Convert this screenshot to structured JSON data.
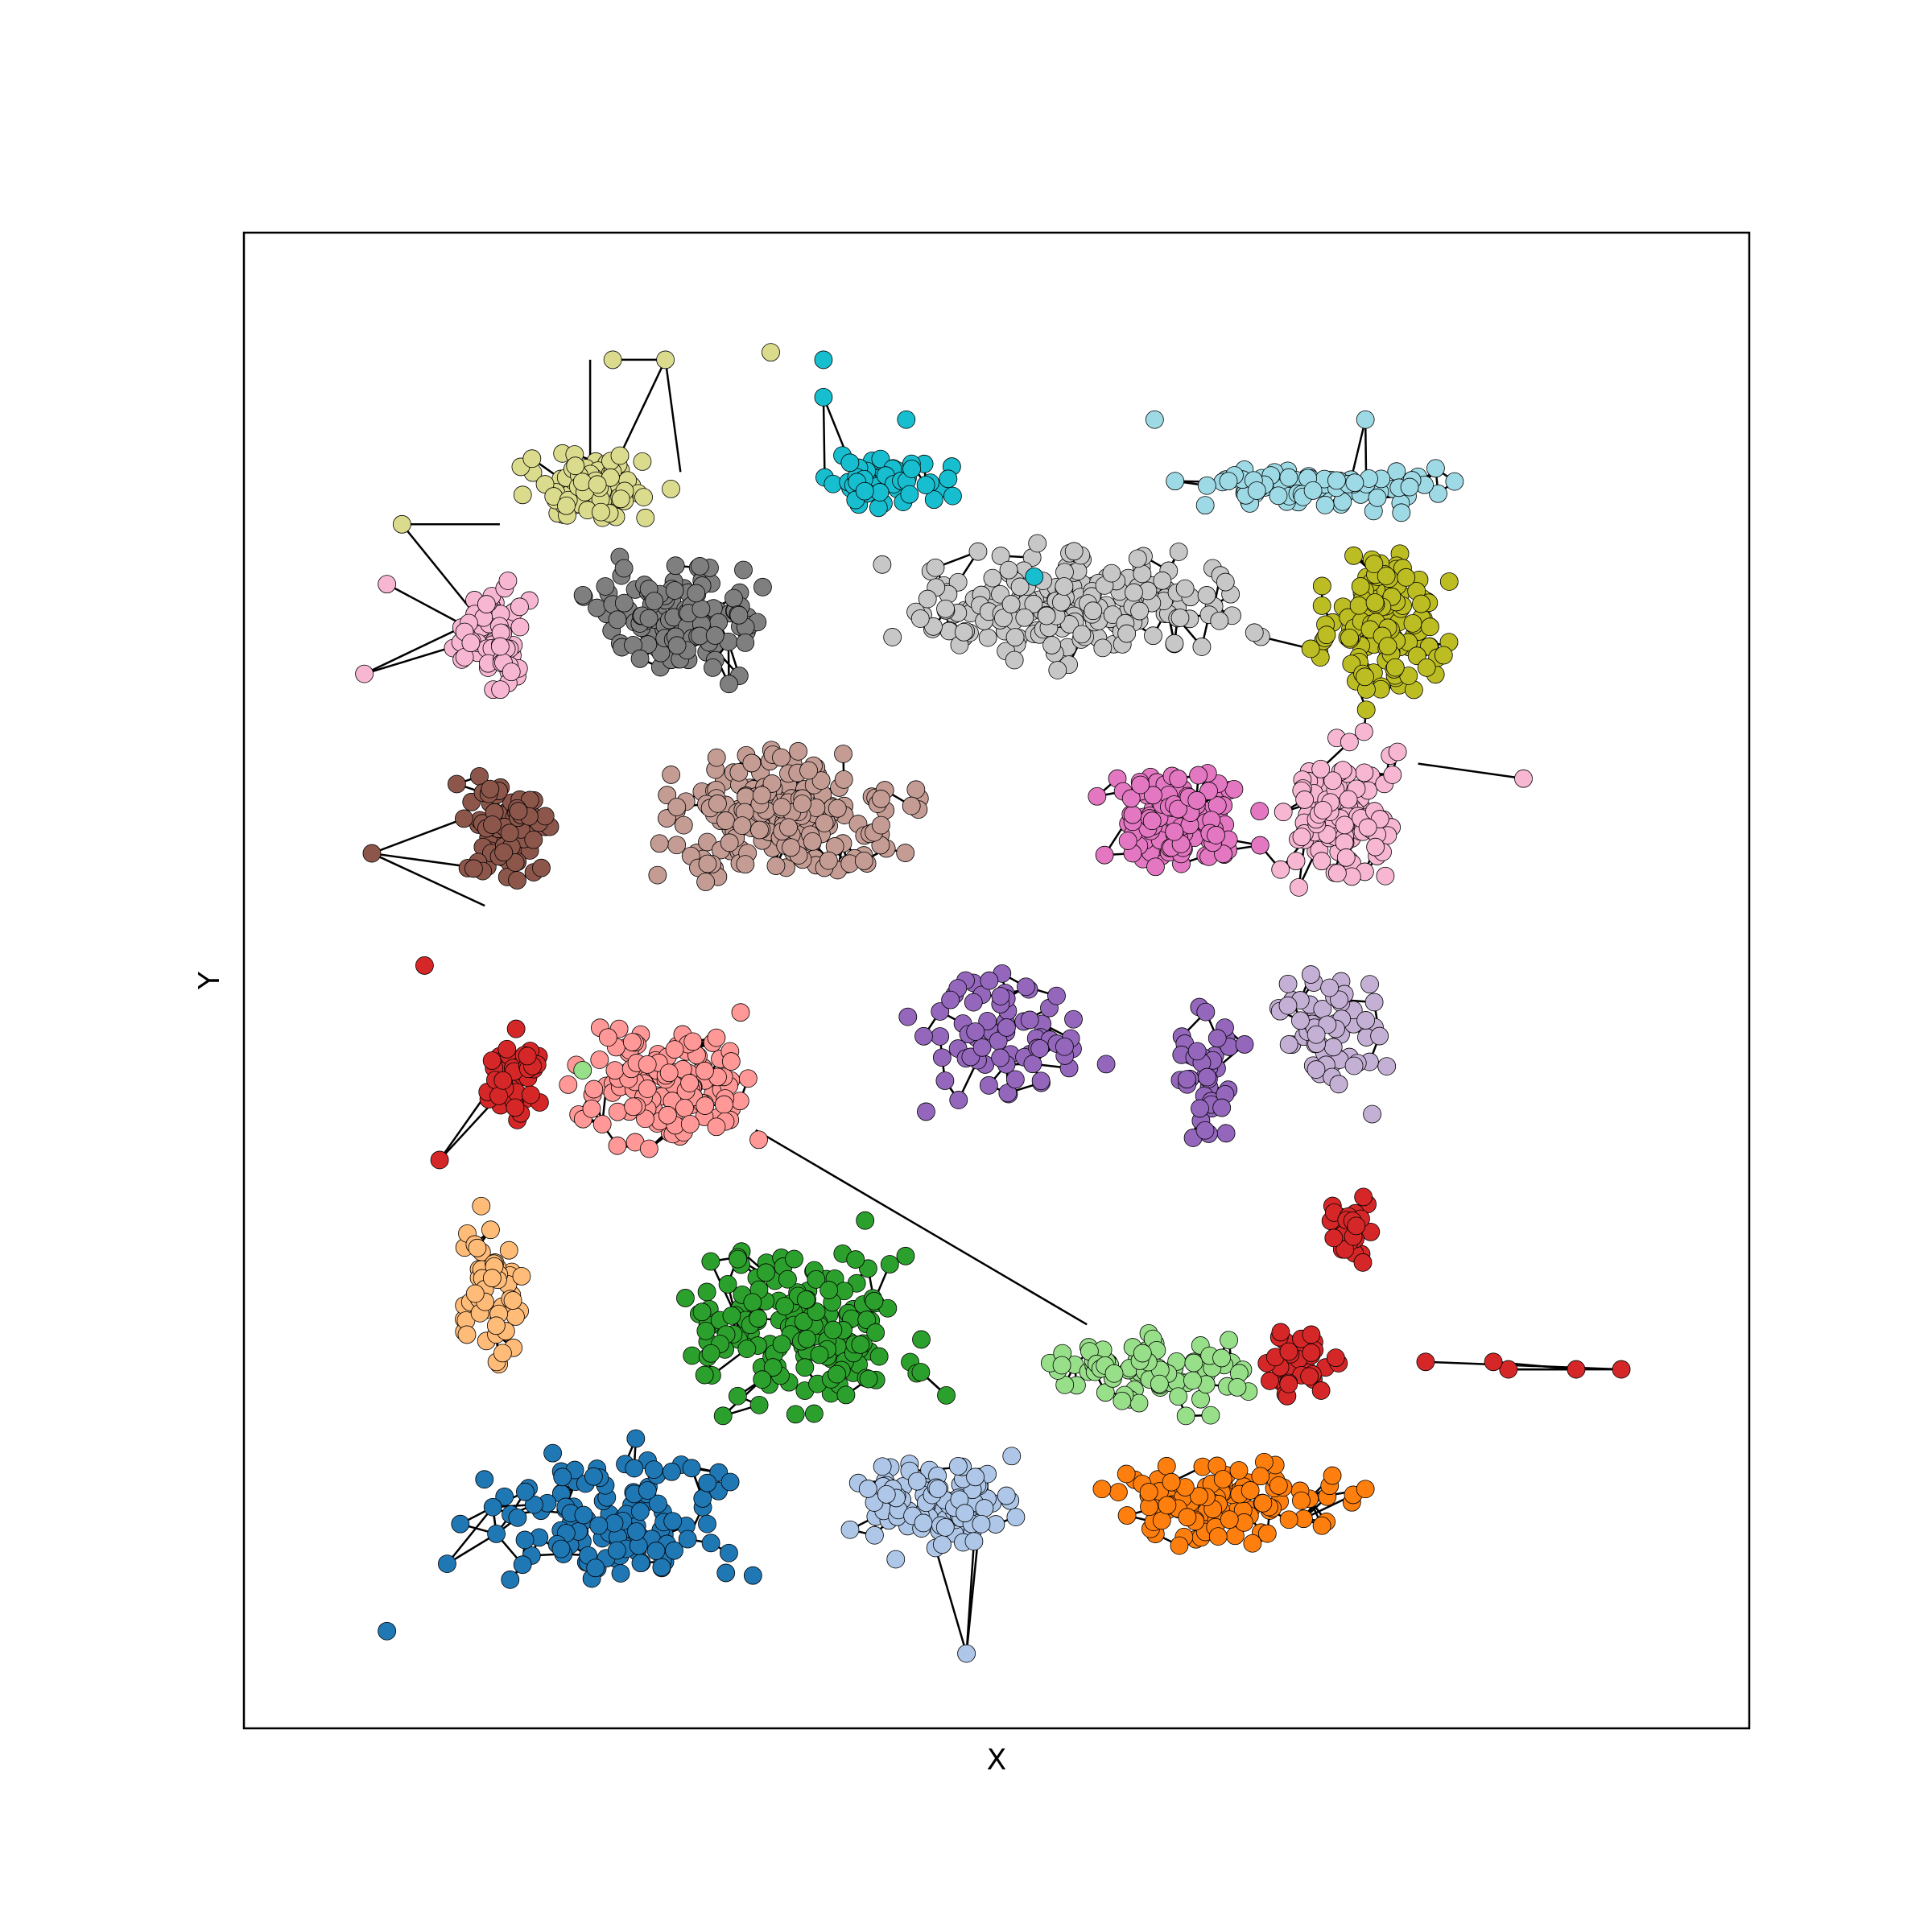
{
  "chart_data": {
    "type": "scatter",
    "subtype": "network-graph",
    "title": "",
    "xlabel": "X",
    "ylabel": "Y",
    "xlim": [
      0,
      100
    ],
    "ylim": [
      0,
      100
    ],
    "ticks": "none",
    "grid": false,
    "legend": "none",
    "edge_color": "#000000",
    "node_outline": "#000000",
    "clusters": [
      {
        "color": "#dbdb8d",
        "center": [
          23,
          83
        ],
        "spread": [
          6,
          3
        ],
        "n": 90
      },
      {
        "color": "#17becf",
        "center": [
          42.5,
          83.5
        ],
        "spread": [
          6,
          2
        ],
        "n": 60
      },
      {
        "color": "#9edae5",
        "center": [
          71,
          83
        ],
        "spread": [
          12,
          2
        ],
        "n": 90
      },
      {
        "color": "#f7b6d2",
        "center": [
          16.5,
          73
        ],
        "spread": [
          3,
          5
        ],
        "n": 70
      },
      {
        "color": "#7f7f7f",
        "center": [
          29,
          74
        ],
        "spread": [
          8,
          5
        ],
        "n": 130
      },
      {
        "color": "#c7c7c7",
        "center": [
          55,
          75
        ],
        "spread": [
          15,
          5
        ],
        "n": 220
      },
      {
        "color": "#bcbd22",
        "center": [
          75.5,
          74
        ],
        "spread": [
          5.5,
          7
        ],
        "n": 140
      },
      {
        "color": "#8c564b",
        "center": [
          17.5,
          60
        ],
        "spread": [
          4,
          5
        ],
        "n": 90
      },
      {
        "color": "#c49c94",
        "center": [
          36,
          61
        ],
        "spread": [
          11,
          5.5
        ],
        "n": 220
      },
      {
        "color": "#e377c2",
        "center": [
          62,
          61
        ],
        "spread": [
          6.5,
          5
        ],
        "n": 120
      },
      {
        "color": "#f7b6d2",
        "center": [
          72.5,
          61
        ],
        "spread": [
          5,
          6.5
        ],
        "n": 110
      },
      {
        "color": "#9467bd",
        "center": [
          51,
          46
        ],
        "spread": [
          9,
          6
        ],
        "n": 70
      },
      {
        "color": "#9467bd",
        "center": [
          64,
          44
        ],
        "spread": [
          3,
          6
        ],
        "n": 40
      },
      {
        "color": "#c5b0d5",
        "center": [
          72.5,
          46
        ],
        "spread": [
          5,
          7
        ],
        "n": 60
      },
      {
        "color": "#ff9896",
        "center": [
          28,
          43
        ],
        "spread": [
          8,
          6
        ],
        "n": 140
      },
      {
        "color": "#d62728",
        "center": [
          18,
          44
        ],
        "spread": [
          3,
          5
        ],
        "n": 45
      },
      {
        "color": "#ffbb78",
        "center": [
          16.5,
          29
        ],
        "spread": [
          3,
          7
        ],
        "n": 55
      },
      {
        "color": "#2ca02c",
        "center": [
          37,
          27
        ],
        "spread": [
          11,
          8
        ],
        "n": 170
      },
      {
        "color": "#98df8a",
        "center": [
          60,
          24
        ],
        "spread": [
          10,
          4
        ],
        "n": 80
      },
      {
        "color": "#1f77b4",
        "center": [
          24,
          14
        ],
        "spread": [
          11,
          6
        ],
        "n": 130
      },
      {
        "color": "#aec7e8",
        "center": [
          46,
          15
        ],
        "spread": [
          7,
          4
        ],
        "n": 110
      },
      {
        "color": "#ff7f0e",
        "center": [
          65,
          15
        ],
        "spread": [
          10,
          4
        ],
        "n": 110
      },
      {
        "color": "#d62728",
        "center": [
          70.5,
          24.5
        ],
        "spread": [
          3,
          4
        ],
        "n": 40
      },
      {
        "color": "#d62728",
        "center": [
          73.5,
          33
        ],
        "spread": [
          2.5,
          3.5
        ],
        "n": 25
      }
    ],
    "outliers": [
      {
        "x": 24.5,
        "y": 91.5,
        "color": "#dbdb8d"
      },
      {
        "x": 28,
        "y": 91.5,
        "color": "#dbdb8d"
      },
      {
        "x": 35,
        "y": 92,
        "color": "#dbdb8d"
      },
      {
        "x": 10.5,
        "y": 80.5,
        "color": "#dbdb8d"
      },
      {
        "x": 38.5,
        "y": 91.5,
        "color": "#17becf"
      },
      {
        "x": 38.5,
        "y": 89,
        "color": "#17becf"
      },
      {
        "x": 44,
        "y": 87.5,
        "color": "#17becf"
      },
      {
        "x": 52.5,
        "y": 77,
        "color": "#17becf"
      },
      {
        "x": 60.5,
        "y": 87.5,
        "color": "#9edae5"
      },
      {
        "x": 74.5,
        "y": 87.5,
        "color": "#9edae5"
      },
      {
        "x": 9.5,
        "y": 76.5,
        "color": "#f7b6d2"
      },
      {
        "x": 8,
        "y": 70.5,
        "color": "#f7b6d2"
      },
      {
        "x": 85,
        "y": 63.5,
        "color": "#f7b6d2"
      },
      {
        "x": 8.5,
        "y": 58.5,
        "color": "#8c564b"
      },
      {
        "x": 12,
        "y": 51,
        "color": "#d62728"
      },
      {
        "x": 13,
        "y": 38,
        "color": "#d62728"
      },
      {
        "x": 22.5,
        "y": 44,
        "color": "#98df8a"
      },
      {
        "x": 88.5,
        "y": 24,
        "color": "#d62728"
      },
      {
        "x": 84,
        "y": 24,
        "color": "#d62728"
      },
      {
        "x": 91.5,
        "y": 24,
        "color": "#d62728"
      },
      {
        "x": 78.5,
        "y": 24.5,
        "color": "#d62728"
      },
      {
        "x": 83,
        "y": 24.5,
        "color": "#d62728"
      },
      {
        "x": 57,
        "y": 16,
        "color": "#ff7f0e"
      },
      {
        "x": 74.5,
        "y": 16,
        "color": "#ff7f0e"
      },
      {
        "x": 48.5,
        "y": 12.5,
        "color": "#aec7e8"
      },
      {
        "x": 48,
        "y": 5,
        "color": "#aec7e8"
      },
      {
        "x": 45,
        "y": 26,
        "color": "#2ca02c"
      },
      {
        "x": 13.5,
        "y": 11,
        "color": "#1f77b4"
      },
      {
        "x": 9.5,
        "y": 6.5,
        "color": "#1f77b4"
      }
    ]
  }
}
